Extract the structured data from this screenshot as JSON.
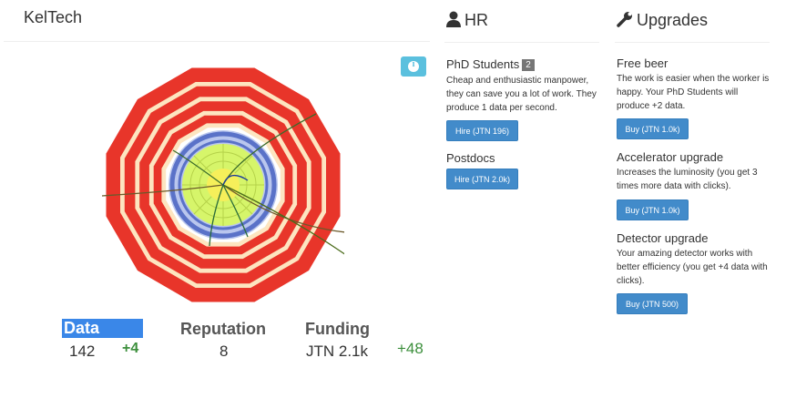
{
  "lab": {
    "name": "KelTech"
  },
  "info_button": {
    "icon": "info-icon"
  },
  "detector": {
    "icon": "particle-detector"
  },
  "stats": {
    "data": {
      "label": "Data",
      "value": "142",
      "floating_gain": "+4"
    },
    "reputation": {
      "label": "Reputation",
      "value": "8"
    },
    "funding": {
      "label": "Funding",
      "value": "JTN 2.1k",
      "delta": "+48"
    }
  },
  "hr": {
    "title": "HR",
    "icon": "user-icon",
    "workers": [
      {
        "name": "PhD Students",
        "count": "2",
        "description": "Cheap and enthusiastic manpower, they can save you a lot of work. They produce 1 data per second.",
        "button": "Hire (JTN 196)"
      },
      {
        "name": "Postdocs",
        "button": "Hire (JTN 2.0k)"
      }
    ]
  },
  "upgrades": {
    "title": "Upgrades",
    "icon": "wrench-icon",
    "items": [
      {
        "name": "Free beer",
        "description": "The work is easier when the worker is happy. Your PhD Students will produce +2 data.",
        "button": "Buy (JTN 1.0k)"
      },
      {
        "name": "Accelerator upgrade",
        "description": "Increases the luminosity (you get 3 times more data with clicks).",
        "button": "Buy (JTN 1.0k)"
      },
      {
        "name": "Detector upgrade",
        "description": "Your amazing detector works with better efficiency (you get +4 data with clicks).",
        "button": "Buy (JTN 500)"
      }
    ]
  },
  "colors": {
    "detector_red": "#e8352a",
    "detector_cream": "#fde5c0",
    "tracker_blue": "#5a72c8",
    "calorimeter_green": "#d6f56a",
    "core_yellow": "#f6ef5a",
    "button_blue": "#428bca",
    "info_blue": "#5bc0de",
    "data_highlight": "#3a87e8",
    "gain_green": "#3c8f3c"
  }
}
